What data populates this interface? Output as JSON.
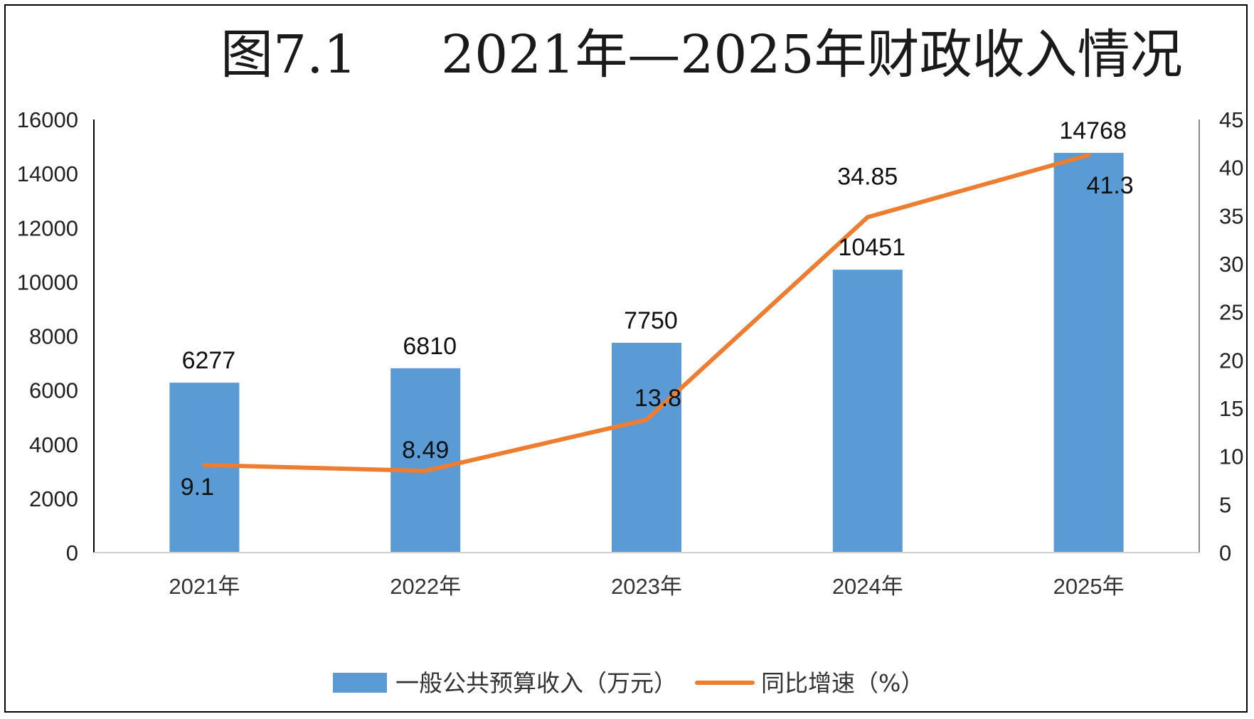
{
  "chart_data": {
    "type": "bar",
    "title": "图7.1 2021年—2025年财政收入情况",
    "title_parts": [
      "图7.1",
      "2021年—2025年财政收入情况"
    ],
    "categories": [
      "2021年",
      "2022年",
      "2023年",
      "2024年",
      "2025年"
    ],
    "series": [
      {
        "name": "一般公共预算收入（万元）",
        "type": "bar",
        "axis": "left",
        "color": "#5b9bd5",
        "values": [
          6277,
          6810,
          7750,
          10451,
          14768
        ],
        "labels": [
          "6277",
          "6810",
          "7750",
          "10451",
          "14768"
        ]
      },
      {
        "name": "同比增速（%）",
        "type": "line",
        "axis": "right",
        "color": "#ed7d31",
        "values": [
          9.1,
          8.49,
          13.8,
          34.85,
          41.3
        ],
        "labels": [
          "9.1",
          "8.49",
          "13.8",
          "34.85",
          "41.3"
        ]
      }
    ],
    "y_left": {
      "min": 0,
      "max": 16000,
      "ticks": [
        "0",
        "2000",
        "4000",
        "6000",
        "8000",
        "10000",
        "12000",
        "14000",
        "16000"
      ]
    },
    "y_right": {
      "min": 0,
      "max": 45,
      "ticks": [
        "0",
        "5",
        "10",
        "15",
        "20",
        "25",
        "30",
        "35",
        "40",
        "45"
      ]
    },
    "xlabel": "",
    "ylabel": "",
    "grid": false,
    "legend_position": "bottom"
  }
}
